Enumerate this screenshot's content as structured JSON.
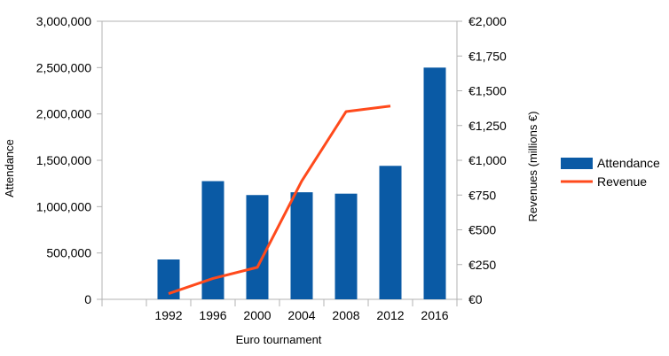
{
  "chart_data": {
    "type": "bar",
    "categories": [
      "1992",
      "1996",
      "2000",
      "2004",
      "2008",
      "2012",
      "2016"
    ],
    "xlabel": "Euro tournament",
    "ylabel": "Attendance",
    "y2label": "Revenues  (millions €)",
    "ylim": [
      0,
      3000000
    ],
    "y2lim": [
      0,
      2000
    ],
    "grid": false,
    "legend_position": "right",
    "y_ticks": [
      "0",
      "500,000",
      "1,000,000",
      "1,500,000",
      "2,000,000",
      "2,500,000",
      "3,000,000"
    ],
    "y2_ticks": [
      "€0",
      "€250",
      "€500",
      "€750",
      "€1,000",
      "€1,250",
      "€1,500",
      "€1,750",
      "€2,000"
    ],
    "series": [
      {
        "name": "Attendance",
        "type": "bar",
        "axis": "left",
        "color": "#0a5aa5",
        "values": [
          430000,
          1275000,
          1125000,
          1155000,
          1140000,
          1440000,
          2500000
        ]
      },
      {
        "name": "Revenue",
        "type": "line",
        "axis": "right",
        "color": "#ff4a1c",
        "values": [
          41,
          150,
          230,
          850,
          1350,
          1390,
          null
        ]
      }
    ]
  }
}
